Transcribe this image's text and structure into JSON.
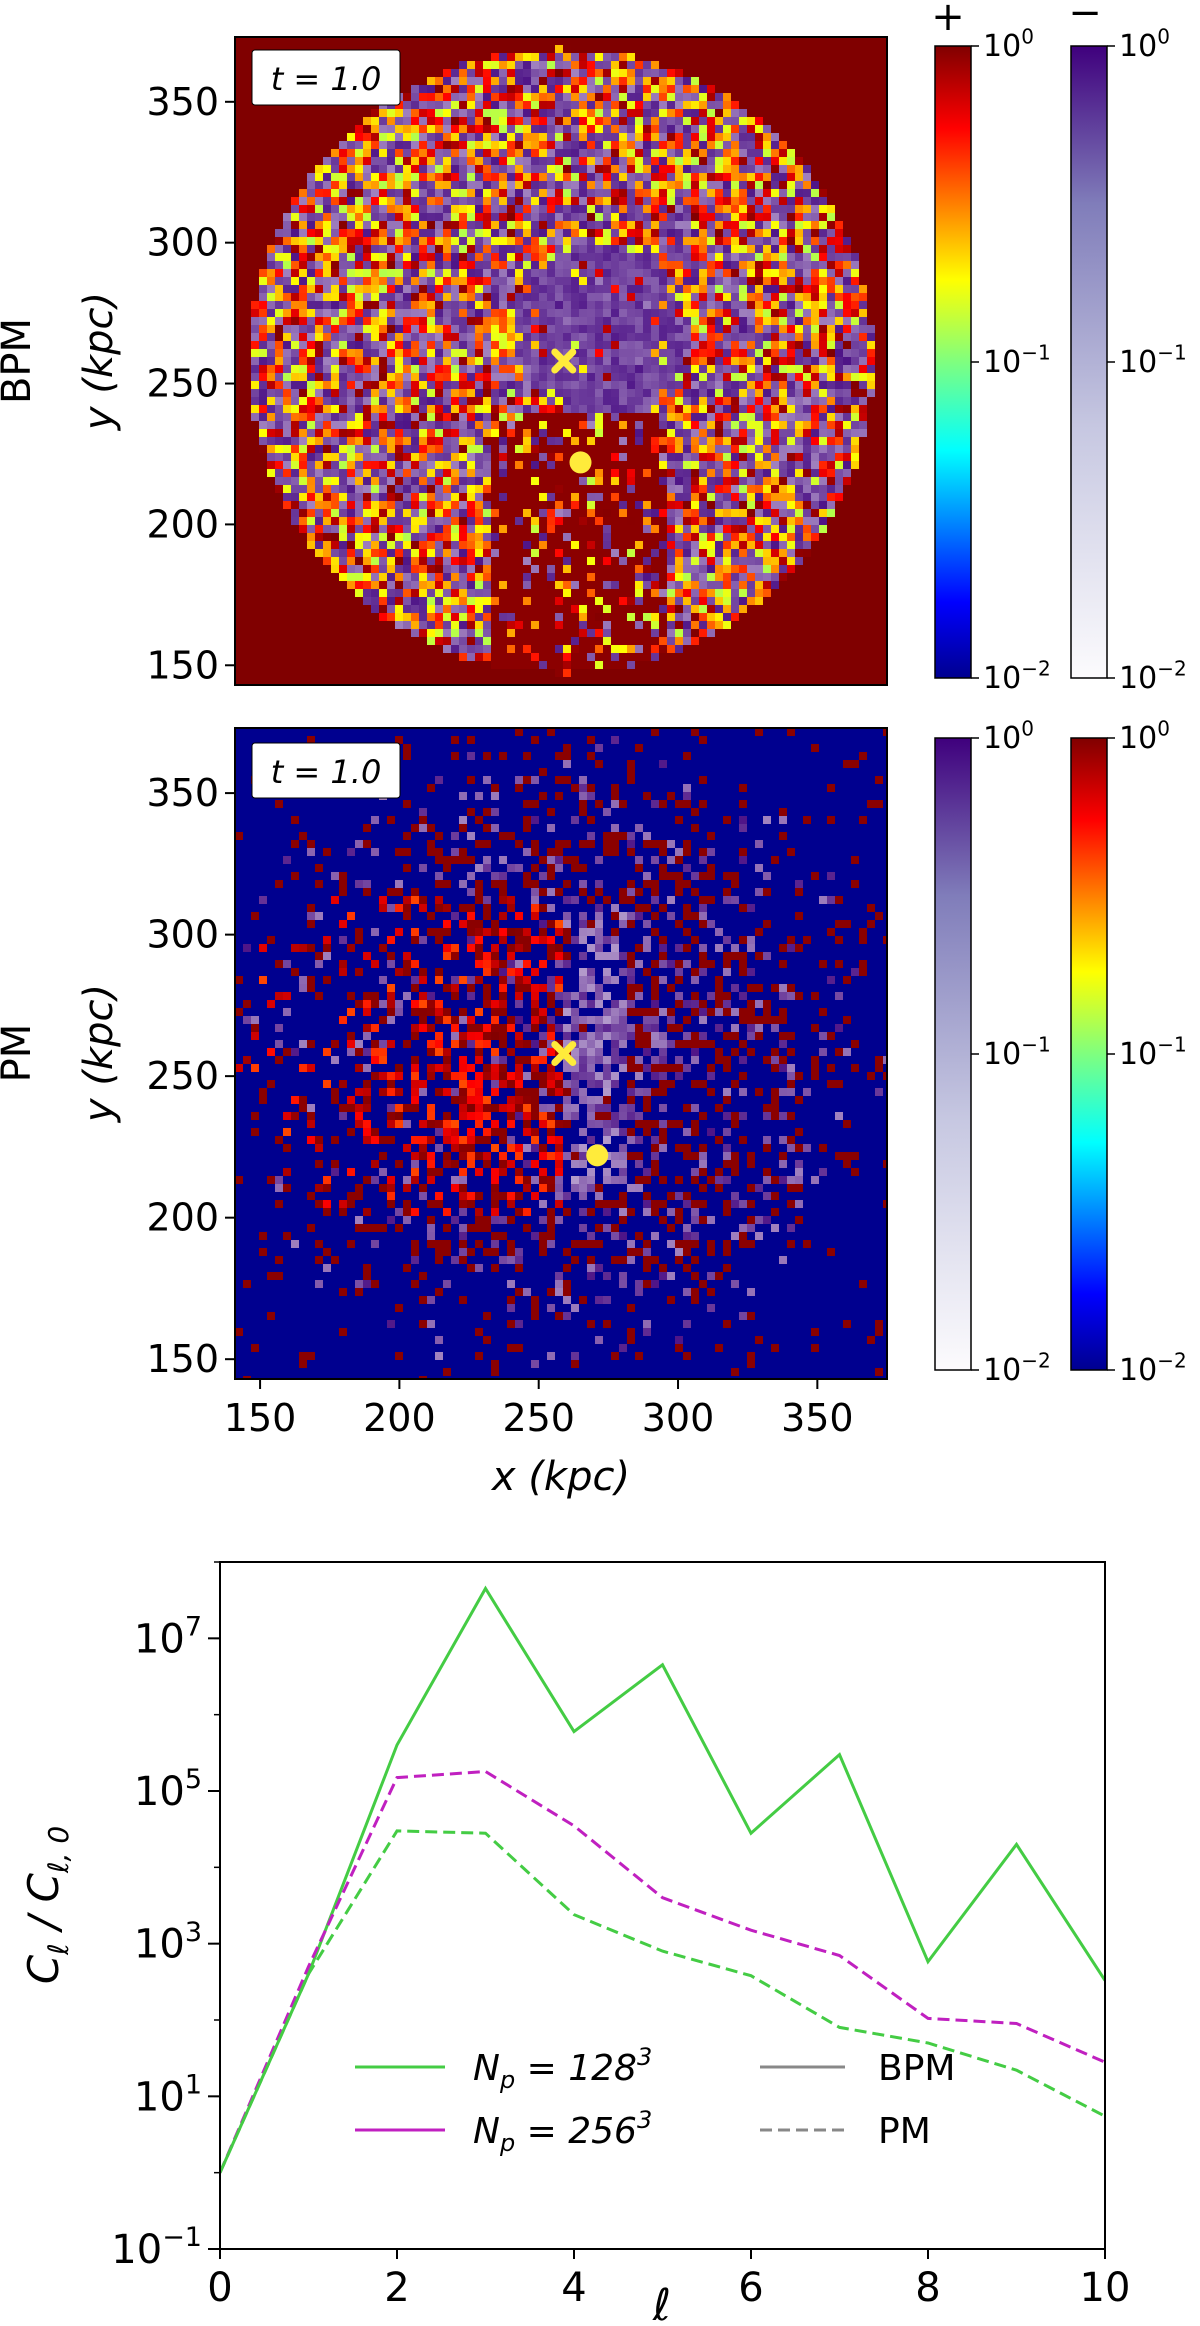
{
  "chart_data": [
    {
      "type": "heatmap",
      "row_label": "BPM",
      "time_label": "t = 1.0",
      "xlabel": "",
      "ylabel": "y (kpc)",
      "xlim": [
        141,
        375
      ],
      "ylim": [
        143,
        373
      ],
      "x_ticks": [],
      "y_ticks": [
        "150",
        "200",
        "250",
        "300",
        "350"
      ],
      "background": "positive",
      "markers": [
        {
          "shape": "x",
          "x": 259,
          "y": 258,
          "color": "#ffeb3b"
        },
        {
          "shape": "circle",
          "x": 265,
          "y": 222,
          "color": "#ffeb3b"
        }
      ],
      "colorbars": [
        {
          "sign_label": "+",
          "cmap": "jet",
          "tick_labels": [
            "10^0",
            "10^-1",
            "10^-2"
          ],
          "range": [
            0.01,
            1
          ],
          "scale": "log"
        },
        {
          "sign_label": "−",
          "cmap": "purples",
          "tick_labels": [
            "10^0",
            "10^-1",
            "10^-2"
          ],
          "range": [
            0.01,
            1
          ],
          "scale": "log"
        }
      ]
    },
    {
      "type": "heatmap",
      "row_label": "PM",
      "time_label": "t = 1.0",
      "xlabel": "x (kpc)",
      "ylabel": "y (kpc)",
      "xlim": [
        141,
        375
      ],
      "ylim": [
        143,
        373
      ],
      "x_ticks": [
        "150",
        "200",
        "250",
        "300",
        "350"
      ],
      "y_ticks": [
        "150",
        "200",
        "250",
        "300",
        "350"
      ],
      "background": "negative",
      "markers": [
        {
          "shape": "x",
          "x": 259,
          "y": 258,
          "color": "#ffeb3b"
        },
        {
          "shape": "circle",
          "x": 271,
          "y": 222,
          "color": "#ffeb3b"
        }
      ],
      "colorbars": [
        {
          "sign_label": "",
          "cmap": "purples",
          "tick_labels": [
            "10^0",
            "10^-1",
            "10^-2"
          ],
          "range": [
            0.01,
            1
          ],
          "scale": "log"
        },
        {
          "sign_label": "",
          "cmap": "jet",
          "tick_labels": [
            "10^0",
            "10^-1",
            "10^-2"
          ],
          "range": [
            0.01,
            1
          ],
          "scale": "log"
        }
      ]
    },
    {
      "type": "line",
      "title": "",
      "xlabel": "ℓ",
      "ylabel": "C_ℓ / C_ℓ,0",
      "xlim": [
        0,
        10
      ],
      "ylim": [
        0.1,
        100000000
      ],
      "yscale": "log",
      "x_ticks": [
        "0",
        "2",
        "4",
        "6",
        "8",
        "10"
      ],
      "y_ticks": [
        "10^-1",
        "10^1",
        "10^3",
        "10^5",
        "10^7"
      ],
      "x": [
        0,
        1,
        2,
        3,
        4,
        5,
        6,
        7,
        8,
        9,
        10
      ],
      "series": [
        {
          "resolution": "N_p = 128^3",
          "method": "BPM",
          "color": "#44cc44",
          "dash": "solid",
          "values": [
            1,
            400,
            400000,
            45000000,
            600000,
            4500000,
            28000,
            300000,
            580,
            20000,
            330
          ]
        },
        {
          "resolution": "N_p = 256^3",
          "method": "PM",
          "color": "#c020c0",
          "dash": "dashed",
          "values": [
            1,
            500,
            150000,
            180000,
            35000,
            4000,
            1500,
            700,
            105,
            90,
            28
          ]
        },
        {
          "resolution": "N_p = 128^3",
          "method": "PM",
          "color": "#44cc44",
          "dash": "dashed",
          "values": [
            1,
            400,
            30000,
            28000,
            2400,
            800,
            380,
            80,
            50,
            22,
            5.5
          ]
        }
      ],
      "legend": {
        "placement": "lower-center",
        "color_entries": [
          {
            "label": "N_p = 128^3",
            "color": "#44cc44"
          },
          {
            "label": "N_p = 256^3",
            "color": "#c020c0"
          }
        ],
        "style_entries": [
          {
            "label": "BPM",
            "color": "#888888",
            "dash": "solid"
          },
          {
            "label": "PM",
            "color": "#888888",
            "dash": "dashed"
          }
        ]
      }
    }
  ]
}
